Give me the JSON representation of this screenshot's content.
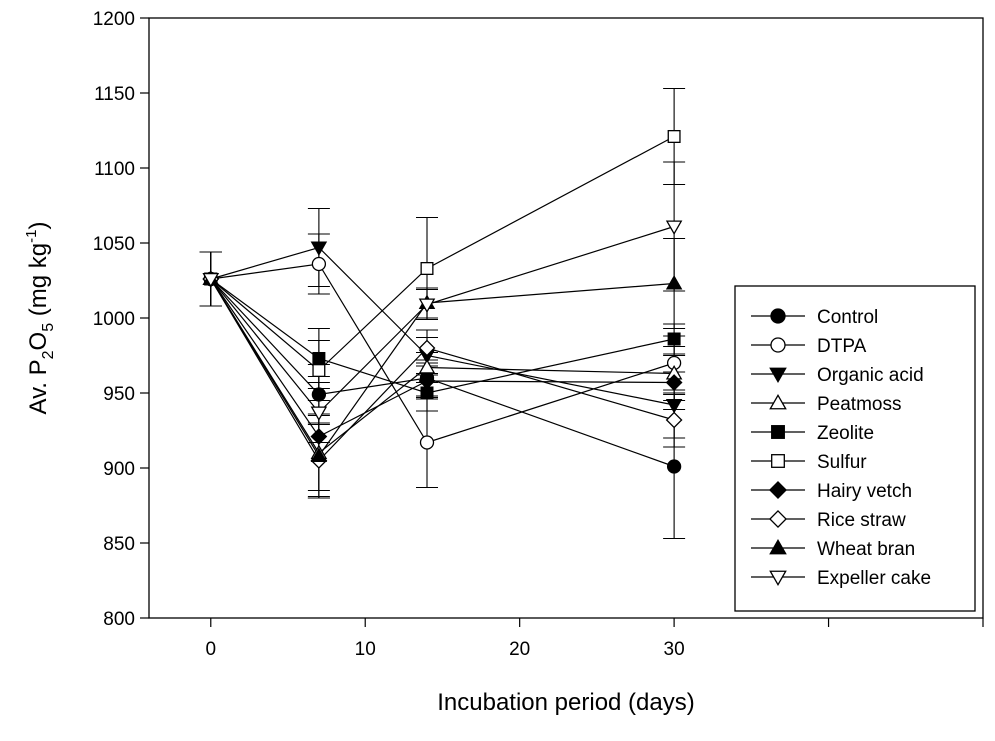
{
  "chart_data": {
    "type": "line",
    "title": "",
    "xlabel": "Incubation period (days)",
    "ylabel_parts": {
      "base": "Av. P",
      "sub1": "2",
      "mid": "O",
      "sub2": "5",
      "unit_open": " (mg kg",
      "sup": "-1",
      "unit_close": ")"
    },
    "xlim": [
      -4,
      50
    ],
    "ylim": [
      800,
      1200
    ],
    "xticks": [
      0,
      10,
      20,
      30
    ],
    "xticks_unlabeled": [
      40,
      50
    ],
    "yticks": [
      800,
      850,
      900,
      950,
      1000,
      1050,
      1100,
      1150,
      1200
    ],
    "x": [
      0,
      7,
      14,
      30
    ],
    "legend_position": "lower-right",
    "series": [
      {
        "name": "Control",
        "marker": "circle",
        "filled": true,
        "values": [
          1026,
          949,
          960,
          901
        ],
        "errors": [
          18,
          20,
          12,
          48
        ]
      },
      {
        "name": "DTPA",
        "marker": "circle",
        "filled": false,
        "values": [
          1026,
          1036,
          917,
          970
        ],
        "errors": [
          18,
          20,
          30,
          18
        ]
      },
      {
        "name": "Organic acid",
        "marker": "triangle-down",
        "filled": true,
        "values": [
          1026,
          1047,
          975,
          942
        ],
        "errors": [
          18,
          26,
          12,
          22
        ]
      },
      {
        "name": "Peatmoss",
        "marker": "triangle-up",
        "filled": false,
        "values": [
          1026,
          910,
          967,
          963
        ],
        "errors": [
          18,
          25,
          10,
          18
        ]
      },
      {
        "name": "Zeolite",
        "marker": "square",
        "filled": true,
        "values": [
          1026,
          973,
          950,
          986
        ],
        "errors": [
          18,
          20,
          12,
          10
        ]
      },
      {
        "name": "Sulfur",
        "marker": "square",
        "filled": false,
        "values": [
          1026,
          965,
          1033,
          1121
        ],
        "errors": [
          18,
          20,
          34,
          32
        ]
      },
      {
        "name": "Hairy vetch",
        "marker": "diamond",
        "filled": true,
        "values": [
          1026,
          921,
          958,
          957
        ],
        "errors": [
          18,
          40,
          12,
          18
        ]
      },
      {
        "name": "Rice straw",
        "marker": "diamond",
        "filled": false,
        "values": [
          1026,
          905,
          980,
          932
        ],
        "errors": [
          18,
          25,
          12,
          18
        ]
      },
      {
        "name": "Wheat bran",
        "marker": "triangle-up",
        "filled": true,
        "values": [
          1026,
          908,
          1010,
          1023
        ],
        "errors": [
          18,
          28,
          10,
          30
        ]
      },
      {
        "name": "Expeller cake",
        "marker": "triangle-down",
        "filled": false,
        "values": [
          1026,
          937,
          1009,
          1061
        ],
        "errors": [
          18,
          20,
          10,
          43
        ]
      }
    ]
  }
}
